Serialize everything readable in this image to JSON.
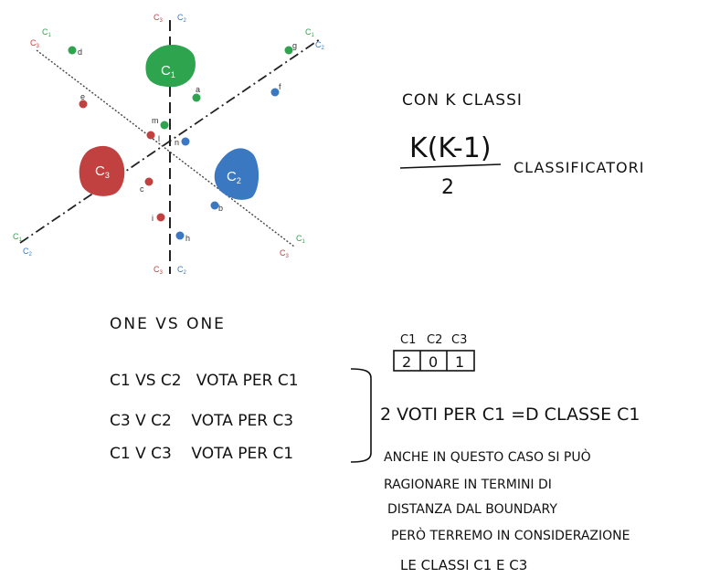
{
  "diagram": {
    "lines": [
      {
        "id": "c1c3",
        "top_a": "C",
        "top_a_sub": "3",
        "top_b": "C",
        "top_b_sub": "2",
        "bottom_a": "C",
        "bottom_a_sub": "3",
        "bottom_b": "C",
        "bottom_b_sub": "2"
      },
      {
        "id": "c1c2",
        "top_label": "C",
        "top_label_sub": "1",
        "top_label2": "C",
        "top_label2_sub": "3",
        "bottom_label": "C",
        "bottom_label_sub": "1",
        "bottom_label2": "C",
        "bottom_label2_sub": "3"
      },
      {
        "id": "c2c3",
        "top_label": "C",
        "top_label_sub": "1",
        "top_label2": "C",
        "top_label2_sub": "2",
        "bottom_label": "C",
        "bottom_label_sub": "1",
        "bottom_label2": "C",
        "bottom_label2_sub": "2"
      }
    ],
    "classes": [
      {
        "name": "C",
        "sub": "1",
        "color": "#2ea44f"
      },
      {
        "name": "C",
        "sub": "2",
        "color": "#3a78c2"
      },
      {
        "name": "C",
        "sub": "3",
        "color": "#c0413f"
      }
    ],
    "points": [
      {
        "label": "d",
        "color": "#2ea44f"
      },
      {
        "label": "g",
        "color": "#2ea44f"
      },
      {
        "label": "e",
        "color": "#c0413f"
      },
      {
        "label": "a",
        "color": "#2ea44f"
      },
      {
        "label": "f",
        "color": "#3a78c2"
      },
      {
        "label": "m",
        "color": "#2ea44f"
      },
      {
        "label": "l",
        "color": "#c0413f"
      },
      {
        "label": "n",
        "color": "#3a78c2"
      },
      {
        "label": "c",
        "color": "#c0413f"
      },
      {
        "label": "b",
        "color": "#3a78c2"
      },
      {
        "label": "i",
        "color": "#c0413f"
      },
      {
        "label": "h",
        "color": "#3a78c2"
      }
    ]
  },
  "notes": {
    "k_classes": "CON K CLASSI",
    "formula_num": "K(K-1)",
    "formula_den": "2",
    "classifiers": "CLASSIFICATORI",
    "one_vs_one": "ONE VS ONE",
    "table_headers": [
      "C1",
      "C2",
      "C3"
    ],
    "table_values": [
      "2",
      "0",
      "1"
    ],
    "votes": [
      "C1 VS C2   VOTA PER C1",
      "C3 V C2    VOTA PER C3",
      "C1 V C3    VOTA PER C1"
    ],
    "result": "2 VOTI PER C1 =D CLASSE C1",
    "comment_lines": [
      "ANCHE IN QUESTO CASO SI PUÒ",
      "RAGIONARE IN TERMINI DI",
      "DISTANZA DAL BOUNDARY",
      "PERÒ TERREMO IN CONSIDERAZIONE",
      "LE CLASSI C1 E C3"
    ]
  }
}
